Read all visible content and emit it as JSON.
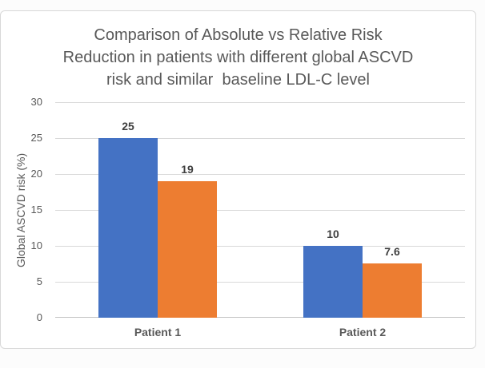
{
  "chart": {
    "title_lines": [
      "Comparison of Absolute vs Relative Risk",
      "Reduction in patients with different global ASCVD",
      "risk and similar  baseline LDL-C level"
    ]
  },
  "chart_data": {
    "type": "bar",
    "title": "Comparison of Absolute vs Relative Risk Reduction in patients with different global ASCVD risk and similar  baseline LDL-C level",
    "categories": [
      "Patient 1",
      "Patient 2"
    ],
    "series": [
      {
        "color": "#4472C4",
        "values": [
          25,
          10
        ],
        "labels": [
          "25",
          "10"
        ]
      },
      {
        "color": "#ED7D31",
        "values": [
          19,
          7.6
        ],
        "labels": [
          "19",
          "7.6"
        ]
      }
    ],
    "xlabel": "",
    "ylabel": "Global ASCVD risk (%)",
    "ylim": [
      0,
      30
    ],
    "ytick_step": 5,
    "ytick_labels": [
      "0",
      "5",
      "10",
      "15",
      "20",
      "25",
      "30"
    ],
    "grid": true,
    "legend_position": "none",
    "data_labels": true,
    "colors": {
      "title_text": "#595959",
      "axis_text": "#595959",
      "data_label_text": "#3f3f3f",
      "gridline": "#d9d9d9",
      "frame_border": "#d8d8d8",
      "plot_background": "#ffffff"
    }
  }
}
